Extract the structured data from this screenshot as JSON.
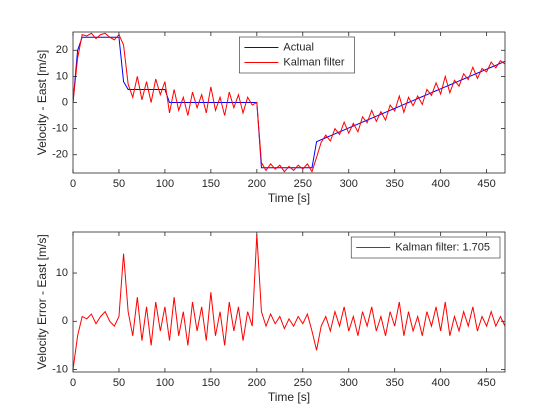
{
  "chart_data": [
    {
      "type": "line",
      "xlabel": "Time [s]",
      "ylabel": "Velocity - East [m/s]",
      "xlim": [
        0,
        470
      ],
      "ylim": [
        -27,
        27
      ],
      "xticks": [
        0,
        50,
        100,
        150,
        200,
        250,
        300,
        350,
        400,
        450
      ],
      "yticks": [
        -20,
        -10,
        0,
        10,
        20
      ],
      "grid": false,
      "legend": "top",
      "x": [
        0,
        5,
        10,
        15,
        20,
        25,
        30,
        35,
        40,
        45,
        50,
        55,
        60,
        65,
        70,
        75,
        80,
        85,
        90,
        95,
        100,
        105,
        110,
        115,
        120,
        125,
        130,
        135,
        140,
        145,
        150,
        155,
        160,
        165,
        170,
        175,
        180,
        185,
        190,
        195,
        200,
        205,
        210,
        215,
        220,
        225,
        230,
        235,
        240,
        245,
        250,
        255,
        260,
        265,
        270,
        275,
        280,
        285,
        290,
        295,
        300,
        305,
        310,
        315,
        320,
        325,
        330,
        335,
        340,
        345,
        350,
        355,
        360,
        365,
        370,
        375,
        380,
        385,
        390,
        395,
        400,
        405,
        410,
        415,
        420,
        425,
        430,
        435,
        440,
        445,
        450,
        455,
        460,
        465,
        470
      ],
      "series": [
        {
          "name": "Actual",
          "color": "#0000ff",
          "values": [
            0,
            20,
            25,
            25,
            25,
            25,
            25,
            25,
            25,
            25,
            25,
            8,
            5,
            5,
            5,
            5,
            5,
            5,
            5,
            5,
            5,
            0,
            0,
            0,
            0,
            0,
            0,
            0,
            0,
            0,
            0,
            0,
            0,
            0,
            0,
            0,
            0,
            0,
            0,
            0,
            0,
            -25,
            -25,
            -25,
            -25,
            -25,
            -25,
            -25,
            -25,
            -25,
            -25,
            -25,
            -25,
            -15,
            -14.25,
            -13.5,
            -12.75,
            -12,
            -11.25,
            -10.5,
            -9.75,
            -9,
            -8.25,
            -7.5,
            -6.75,
            -6,
            -5.25,
            -4.5,
            -3.75,
            -3,
            -2.25,
            -1.5,
            -0.75,
            0,
            0.75,
            1.5,
            2.25,
            3,
            3.75,
            4.5,
            5.25,
            6,
            6.75,
            7.5,
            8.25,
            9,
            9.75,
            10.5,
            11.25,
            12,
            12.75,
            13.5,
            14.25,
            15,
            15.75
          ]
        },
        {
          "name": "Kalman filter",
          "color": "#ff0000",
          "values": [
            0,
            17,
            26,
            25.5,
            26.5,
            24.5,
            26,
            26.5,
            25,
            24,
            26,
            22,
            7,
            2,
            10,
            1,
            8,
            0,
            9,
            3,
            8,
            -4,
            5,
            -3,
            2,
            -5,
            4,
            -2,
            3,
            -4,
            6,
            -3,
            2,
            -5,
            4,
            -2,
            3,
            -4,
            2,
            -1,
            0,
            -23,
            -26,
            -23.5,
            -25.5,
            -24,
            -26.5,
            -24.5,
            -26,
            -24,
            -25.5,
            -23.5,
            -26.5,
            -21,
            -15.25,
            -12.5,
            -14.75,
            -10,
            -12.25,
            -7.5,
            -11.75,
            -8,
            -11.25,
            -5.5,
            -7.75,
            -3,
            -7.25,
            -3.5,
            -6.75,
            -1,
            -3.25,
            2.5,
            -3.75,
            2,
            -1.25,
            2.5,
            -0.75,
            5,
            2.75,
            7.5,
            3.25,
            10,
            3.75,
            8.5,
            6.25,
            11,
            8.75,
            13.5,
            9.25,
            13,
            11.75,
            15.5,
            13.25,
            16,
            14.75
          ]
        }
      ]
    },
    {
      "type": "line",
      "xlabel": "Time [s]",
      "ylabel": "Velocity Error - East [m/s]",
      "xlim": [
        0,
        470
      ],
      "ylim": [
        -10.5,
        18.5
      ],
      "xticks": [
        0,
        50,
        100,
        150,
        200,
        250,
        300,
        350,
        400,
        450
      ],
      "yticks": [
        -10,
        0,
        10
      ],
      "grid": false,
      "legend": "top-right",
      "x": [
        0,
        5,
        10,
        15,
        20,
        25,
        30,
        35,
        40,
        45,
        50,
        55,
        60,
        65,
        70,
        75,
        80,
        85,
        90,
        95,
        100,
        105,
        110,
        115,
        120,
        125,
        130,
        135,
        140,
        145,
        150,
        155,
        160,
        165,
        170,
        175,
        180,
        185,
        190,
        195,
        200,
        205,
        210,
        215,
        220,
        225,
        230,
        235,
        240,
        245,
        250,
        255,
        260,
        265,
        270,
        275,
        280,
        285,
        290,
        295,
        300,
        305,
        310,
        315,
        320,
        325,
        330,
        335,
        340,
        345,
        350,
        355,
        360,
        365,
        370,
        375,
        380,
        385,
        390,
        395,
        400,
        405,
        410,
        415,
        420,
        425,
        430,
        435,
        440,
        445,
        450,
        455,
        460,
        465,
        470
      ],
      "series": [
        {
          "name": "Kalman filter: 1.705",
          "color": "#ff0000",
          "values": [
            -10,
            -3,
            1,
            0.5,
            1.5,
            -0.5,
            1,
            2,
            0,
            -1,
            1,
            14,
            2,
            -3,
            5,
            -4,
            3,
            -5,
            4,
            -2,
            3,
            -4,
            5,
            -3,
            2,
            -5,
            4,
            -2,
            3,
            -4,
            6,
            -3,
            2,
            -5,
            4,
            -2,
            3,
            -4,
            2,
            -1,
            18,
            2,
            -1,
            1.5,
            -0.5,
            1,
            -1.5,
            0.5,
            -1,
            1,
            -0.5,
            1.5,
            -2,
            -6,
            -1,
            1,
            -2,
            2,
            -1,
            3,
            -2,
            1,
            -3,
            2,
            -1,
            3,
            -2,
            1,
            -3,
            2,
            -1,
            4,
            -3,
            2,
            -2,
            1,
            -3,
            2,
            -1,
            3,
            -2,
            4,
            -3,
            1,
            -2,
            2,
            -1,
            3,
            -2,
            1,
            -1,
            2,
            -1,
            1,
            -1
          ]
        }
      ]
    }
  ]
}
